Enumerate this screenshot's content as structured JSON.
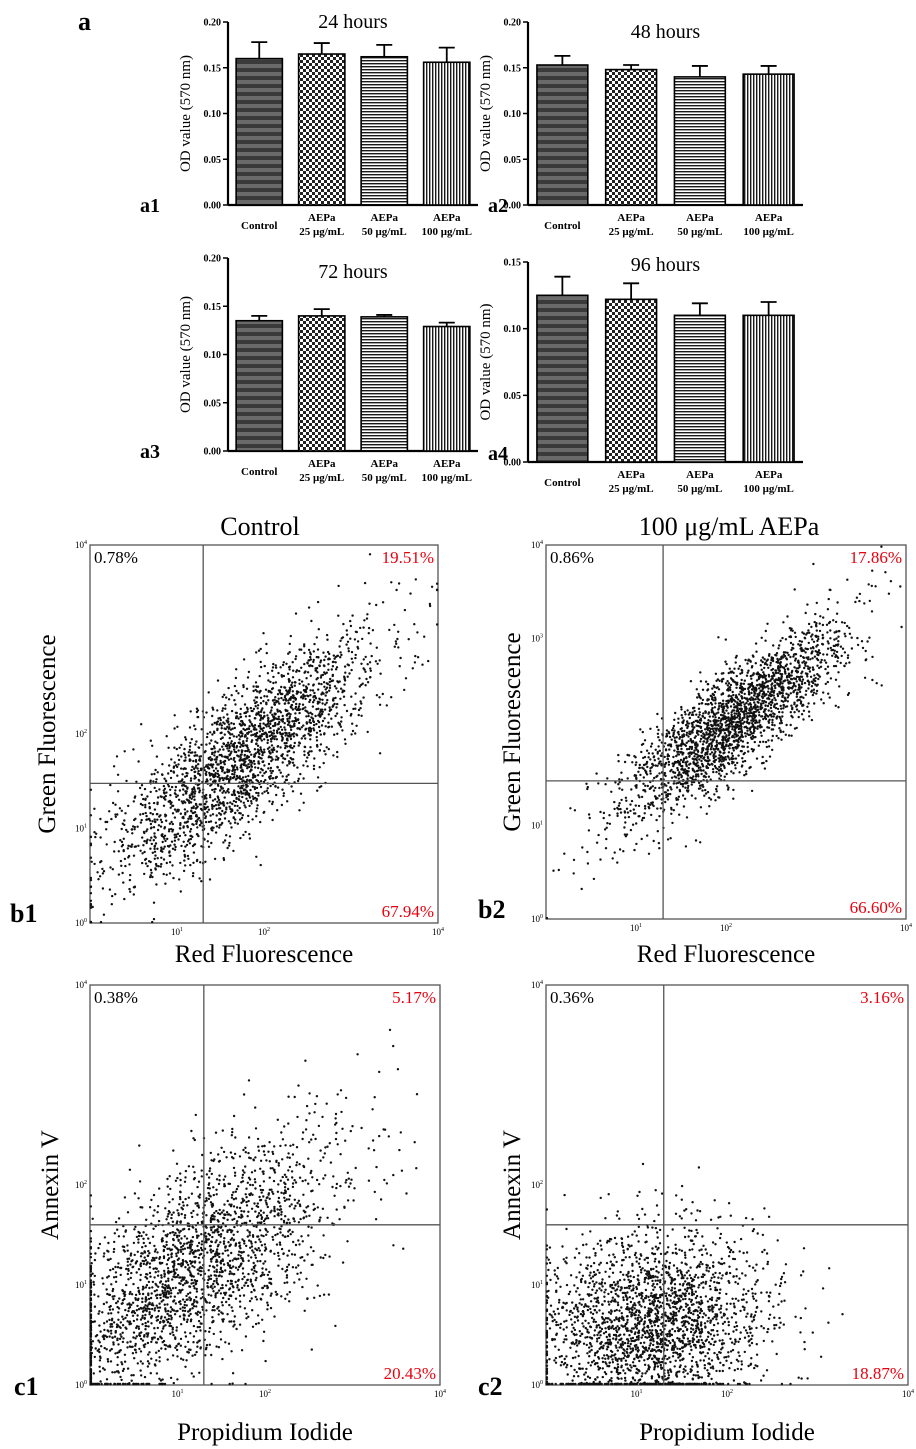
{
  "figure": {
    "section_a": "a",
    "colors": {
      "text": "#000000",
      "quadrant_percent": "#e8000e",
      "axis": "#000000",
      "gate": "#555555"
    }
  },
  "chart_data": [
    {
      "id": "a1",
      "type": "bar",
      "panel_label": "a1",
      "title": "24 hours",
      "ylabel": "OD value (570 nm)",
      "ylim": [
        0,
        0.2
      ],
      "yticks": [
        "0.00",
        "0.05",
        "0.10",
        "0.15",
        "0.20"
      ],
      "categories": [
        [
          "Control"
        ],
        [
          "AEPa",
          "25 μg/mL"
        ],
        [
          "AEPa",
          "50 μg/mL"
        ],
        [
          "AEPa",
          "100 μg/mL"
        ]
      ],
      "values": [
        0.16,
        0.165,
        0.162,
        0.156
      ],
      "errors": [
        0.018,
        0.012,
        0.013,
        0.016
      ]
    },
    {
      "id": "a2",
      "type": "bar",
      "panel_label": "a2",
      "title": "48 hours",
      "ylabel": "OD value (570 nm)",
      "ylim": [
        0,
        0.2
      ],
      "yticks": [
        "0.00",
        "0.05",
        "0.10",
        "0.15",
        "0.20"
      ],
      "categories": [
        [
          "Control"
        ],
        [
          "AEPa",
          "25 μg/mL"
        ],
        [
          "AEPa",
          "50 μg/mL"
        ],
        [
          "AEPa",
          "100 μg/mL"
        ]
      ],
      "values": [
        0.153,
        0.148,
        0.14,
        0.143
      ],
      "errors": [
        0.01,
        0.005,
        0.012,
        0.009
      ]
    },
    {
      "id": "a3",
      "type": "bar",
      "panel_label": "a3",
      "title": "72 hours",
      "ylabel": "OD value (570 nm)",
      "ylim": [
        0,
        0.2
      ],
      "yticks": [
        "0.00",
        "0.05",
        "0.10",
        "0.15",
        "0.20"
      ],
      "categories": [
        [
          "Control"
        ],
        [
          "AEPa",
          "25 μg/mL"
        ],
        [
          "AEPa",
          "50 μg/mL"
        ],
        [
          "AEPa",
          "100 μg/mL"
        ]
      ],
      "values": [
        0.135,
        0.14,
        0.139,
        0.129
      ],
      "errors": [
        0.005,
        0.007,
        0.002,
        0.004
      ]
    },
    {
      "id": "a4",
      "type": "bar",
      "panel_label": "a4",
      "title": "96 hours",
      "ylabel": "OD value (570 nm)",
      "ylim": [
        0,
        0.15
      ],
      "yticks": [
        "0.00",
        "0.05",
        "0.10",
        "0.15"
      ],
      "categories": [
        [
          "Control"
        ],
        [
          "AEPa",
          "25 μg/mL"
        ],
        [
          "AEPa",
          "50 μg/mL"
        ],
        [
          "AEPa",
          "100 μg/mL"
        ]
      ],
      "values": [
        0.125,
        0.122,
        0.11,
        0.11
      ],
      "errors": [
        0.014,
        0.012,
        0.009,
        0.01
      ]
    },
    {
      "id": "b1",
      "type": "scatter",
      "panel_label": "b1",
      "title": "Control",
      "xlabel": "Red Fluorescence",
      "ylabel": "Green Fluorescence",
      "scale": "log",
      "xlim": [
        1,
        10000
      ],
      "ylim": [
        1,
        10000
      ],
      "xticks": [
        [
          "10",
          "1"
        ],
        [
          "10",
          "2"
        ],
        [
          "10",
          "4"
        ]
      ],
      "yticks": [
        [
          "10",
          "0"
        ],
        [
          "10",
          "1"
        ],
        [
          "10",
          "2"
        ],
        [
          "10",
          "4"
        ]
      ],
      "gate": {
        "x": 20,
        "y": 30
      },
      "quadrants": {
        "upper_left": "0.78%",
        "upper_right": "19.51%",
        "lower_right": "67.94%"
      },
      "cluster": {
        "cx": 60,
        "cy": 60,
        "spread_x": 0.55,
        "spread_y": 0.5,
        "trend": 0.75
      }
    },
    {
      "id": "b2",
      "type": "scatter",
      "panel_label": "b2",
      "title": "100 μg/mL AEPa",
      "xlabel": "Red Fluorescence",
      "ylabel": "Green Fluorescence",
      "scale": "log",
      "xlim": [
        1,
        10000
      ],
      "ylim": [
        1,
        10000
      ],
      "xticks": [
        [
          "10",
          "1"
        ],
        [
          "10",
          "2"
        ],
        [
          "10",
          "4"
        ]
      ],
      "yticks": [
        [
          "10",
          "0"
        ],
        [
          "10",
          "1"
        ],
        [
          "10",
          "3"
        ],
        [
          "10",
          "4"
        ]
      ],
      "gate": {
        "x": 20,
        "y": 30
      },
      "quadrants": {
        "upper_left": "0.86%",
        "upper_right": "17.86%",
        "lower_right": "66.60%"
      },
      "cluster": {
        "cx": 120,
        "cy": 130,
        "spread_x": 0.45,
        "spread_y": 0.4,
        "trend": 0.8
      }
    },
    {
      "id": "c1",
      "type": "scatter",
      "panel_label": "c1",
      "xlabel": "Propidium Iodide",
      "ylabel": "Annexin V",
      "scale": "log",
      "xlim": [
        1,
        10000
      ],
      "ylim": [
        1,
        10000
      ],
      "xticks": [
        [
          "10",
          "1"
        ],
        [
          "10",
          "2"
        ],
        [
          "10",
          "4"
        ]
      ],
      "yticks": [
        [
          "10",
          "0"
        ],
        [
          "10",
          "1"
        ],
        [
          "10",
          "2"
        ],
        [
          "10",
          "4"
        ]
      ],
      "gate": {
        "x": 20,
        "y": 40
      },
      "quadrants": {
        "upper_left": "0.38%",
        "upper_right": "5.17%",
        "lower_right": "20.43%"
      },
      "cluster": {
        "cx": 15,
        "cy": 15,
        "spread_x": 0.6,
        "spread_y": 0.55,
        "trend": 0.6
      }
    },
    {
      "id": "c2",
      "type": "scatter",
      "panel_label": "c2",
      "xlabel": "Propidium Iodide",
      "ylabel": "Annexin V",
      "scale": "log",
      "xlim": [
        1,
        10000
      ],
      "ylim": [
        1,
        10000
      ],
      "xticks": [
        [
          "10",
          "1"
        ],
        [
          "10",
          "2"
        ],
        [
          "10",
          "4"
        ]
      ],
      "yticks": [
        [
          "10",
          "0"
        ],
        [
          "10",
          "1"
        ],
        [
          "10",
          "2"
        ],
        [
          "10",
          "4"
        ]
      ],
      "gate": {
        "x": 20,
        "y": 40
      },
      "quadrants": {
        "upper_left": "0.36%",
        "upper_right": "3.16%",
        "lower_right": "18.87%"
      },
      "cluster": {
        "cx": 15,
        "cy": 4,
        "spread_x": 0.45,
        "spread_y": 0.35,
        "trend": 0.1
      }
    }
  ]
}
